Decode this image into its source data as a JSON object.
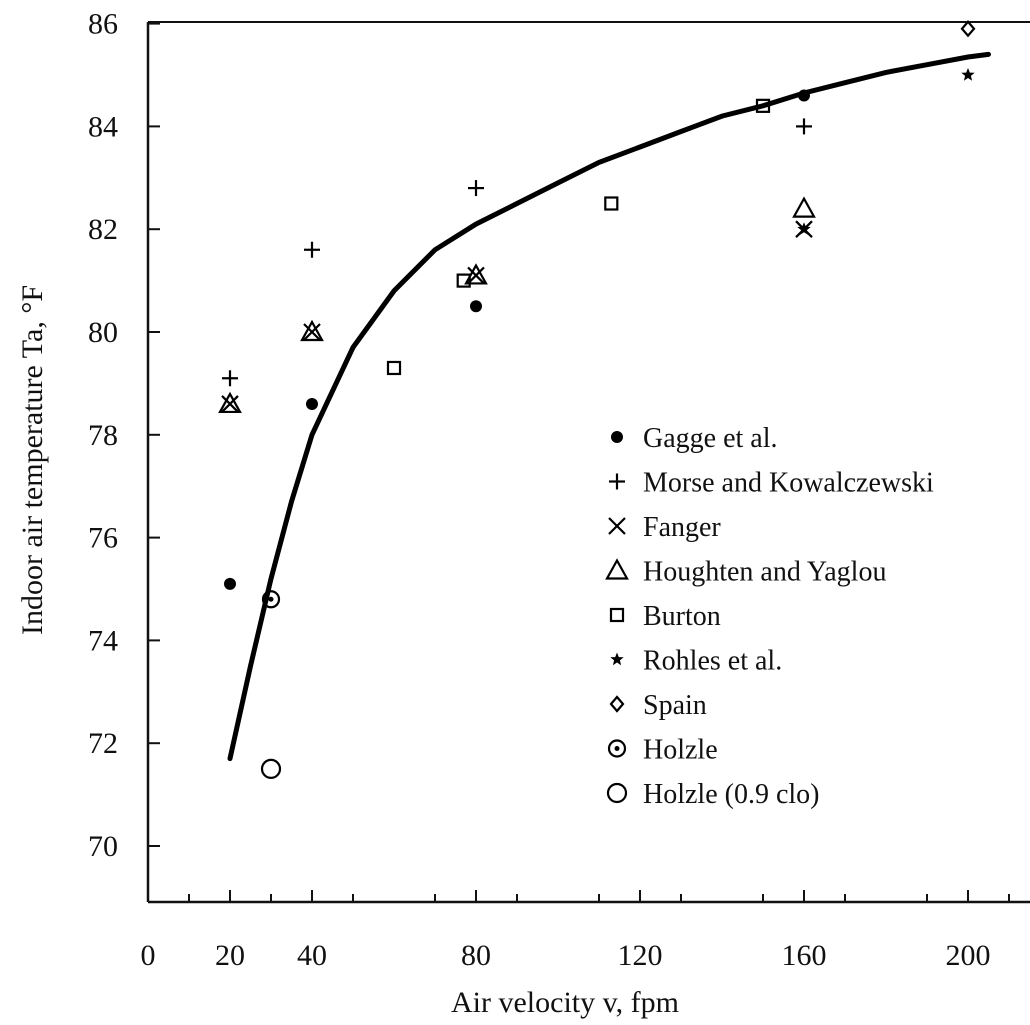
{
  "chart_data": {
    "type": "scatter",
    "xlabel": "Air velocity v, fpm",
    "ylabel": "Indoor air temperature Ta, °F",
    "xlim": [
      0,
      210
    ],
    "ylim": [
      69,
      86
    ],
    "x_ticks": [
      0,
      20,
      40,
      80,
      120,
      160,
      200
    ],
    "y_ticks": [
      70,
      72,
      74,
      76,
      78,
      80,
      82,
      84,
      86
    ],
    "legend_position": "right",
    "curve": {
      "x": [
        20,
        25,
        30,
        35,
        40,
        50,
        60,
        70,
        80,
        90,
        100,
        110,
        120,
        130,
        140,
        150,
        160,
        170,
        180,
        190,
        200,
        205
      ],
      "y": [
        71.7,
        73.5,
        75.2,
        76.7,
        78.0,
        79.7,
        80.8,
        81.6,
        82.1,
        82.5,
        82.9,
        83.3,
        83.6,
        83.9,
        84.2,
        84.4,
        84.65,
        84.85,
        85.05,
        85.2,
        85.35,
        85.4
      ]
    },
    "series": [
      {
        "name": "Gagge et al.",
        "marker": "dot",
        "x": [
          20,
          40,
          80,
          160
        ],
        "y": [
          75.1,
          78.6,
          80.5,
          84.6
        ]
      },
      {
        "name": "Morse and Kowalczewski",
        "marker": "plus",
        "x": [
          20,
          40,
          80,
          160
        ],
        "y": [
          79.1,
          81.6,
          82.8,
          84.0
        ]
      },
      {
        "name": "Fanger",
        "marker": "x",
        "x": [
          20,
          40,
          80,
          160
        ],
        "y": [
          78.6,
          80.0,
          81.1,
          82.0
        ]
      },
      {
        "name": "Houghten and Yaglou",
        "marker": "triangle",
        "x": [
          20,
          40,
          80,
          160
        ],
        "y": [
          78.6,
          80.0,
          81.1,
          82.4
        ]
      },
      {
        "name": "Burton",
        "marker": "square",
        "x": [
          60,
          77,
          113,
          150
        ],
        "y": [
          79.3,
          81.0,
          82.5,
          84.4
        ]
      },
      {
        "name": "Rohles et al.",
        "marker": "star",
        "x": [
          160,
          200
        ],
        "y": [
          82.0,
          85.0
        ]
      },
      {
        "name": "Spain",
        "marker": "diamond",
        "x": [
          200
        ],
        "y": [
          85.9
        ]
      },
      {
        "name": "Holzle",
        "marker": "dotted-circle",
        "x": [
          30
        ],
        "y": [
          74.8
        ]
      },
      {
        "name": "Holzle (0.9 clo)",
        "marker": "circle",
        "x": [
          30
        ],
        "y": [
          71.5
        ]
      }
    ]
  }
}
